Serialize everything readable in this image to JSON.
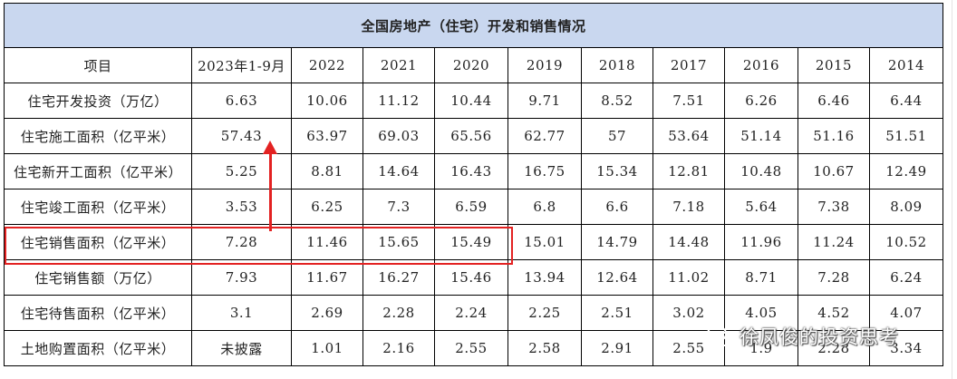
{
  "table": {
    "title": "全国房地产（住宅）开发和销售情况",
    "headers": [
      "项目",
      "2023年1-9月",
      "2022",
      "2021",
      "2020",
      "2019",
      "2018",
      "2017",
      "2016",
      "2015",
      "2014"
    ],
    "rows": [
      [
        "住宅开发投资（万亿）",
        "6.63",
        "10.06",
        "11.12",
        "10.44",
        "9.71",
        "8.52",
        "7.51",
        "6.26",
        "6.46",
        "6.44"
      ],
      [
        "住宅施工面积（亿平米）",
        "57.43",
        "63.97",
        "69.03",
        "65.56",
        "62.77",
        "57",
        "53.64",
        "51.14",
        "51.16",
        "51.51"
      ],
      [
        "住宅新开工面积（亿平米）",
        "5.25",
        "8.81",
        "14.64",
        "16.43",
        "16.75",
        "15.34",
        "12.81",
        "10.48",
        "10.67",
        "12.49"
      ],
      [
        "住宅竣工面积（亿平米）",
        "3.53",
        "6.25",
        "7.3",
        "6.59",
        "6.8",
        "6.6",
        "7.18",
        "5.64",
        "7.38",
        "8.09"
      ],
      [
        "住宅销售面积（亿平米）",
        "7.28",
        "11.46",
        "15.65",
        "15.49",
        "15.01",
        "14.79",
        "14.48",
        "11.96",
        "11.24",
        "10.52"
      ],
      [
        "住宅销售额（万亿）",
        "7.93",
        "11.67",
        "16.27",
        "15.46",
        "13.94",
        "12.64",
        "11.02",
        "8.71",
        "7.28",
        "6.24"
      ],
      [
        "住宅待售面积（亿平米）",
        "3.1",
        "2.69",
        "2.28",
        "2.24",
        "2.25",
        "2.51",
        "3.02",
        "4.05",
        "4.52",
        "4.07"
      ],
      [
        "土地购置面积（亿平米）",
        "未披露",
        "1.01",
        "2.16",
        "2.55",
        "2.58",
        "2.91",
        "2.55",
        "1.9",
        "2.28",
        "3.34"
      ]
    ]
  },
  "annotations": {
    "highlight_color": "#e32222",
    "header_bg": "#c9d7ef",
    "arrow_icon": "arrow-up-icon"
  },
  "watermark": {
    "icon": "wechat-icon",
    "text": "徐凤俊的投资思考"
  }
}
